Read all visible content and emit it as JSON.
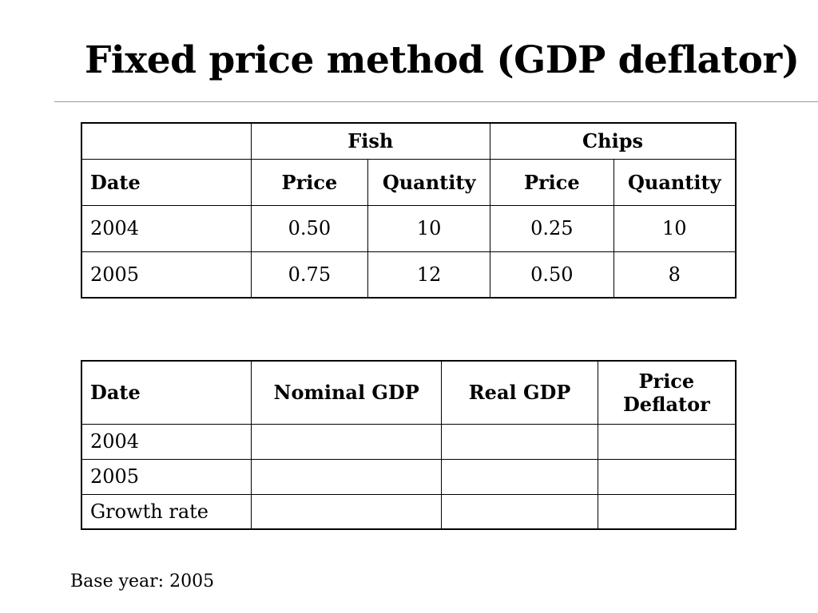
{
  "slide": {
    "title": "Fixed price method (GDP deflator)",
    "base_note": "Base year: 2005"
  },
  "table1": {
    "groups": [
      "",
      "Fish",
      "Chips"
    ],
    "headers": [
      "Date",
      "Price",
      "Quantity",
      "Price",
      "Quantity"
    ],
    "rows": [
      [
        "2004",
        "0.50",
        "10",
        "0.25",
        "10"
      ],
      [
        "2005",
        "0.75",
        "12",
        "0.50",
        "8"
      ]
    ]
  },
  "table2": {
    "headers": [
      "Date",
      "Nominal GDP",
      "Real GDP",
      "Price Deflator"
    ],
    "rows": [
      [
        "2004",
        "",
        "",
        ""
      ],
      [
        "2005",
        "",
        "",
        ""
      ],
      [
        "Growth rate",
        "",
        "",
        ""
      ]
    ]
  }
}
